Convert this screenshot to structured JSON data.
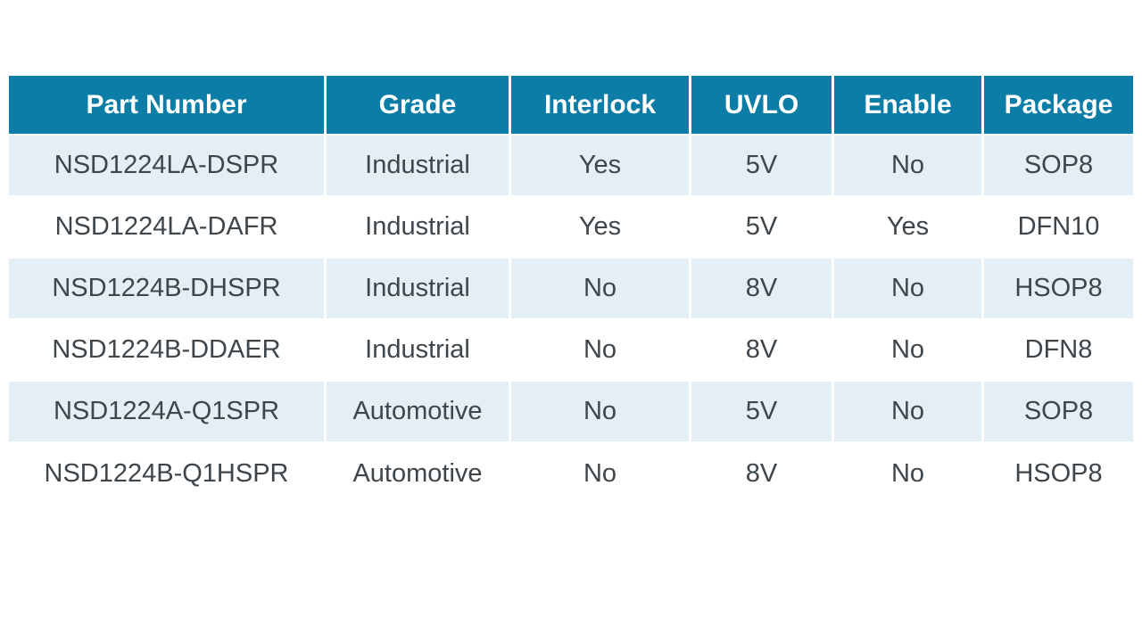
{
  "theme": {
    "header_bg": "#0b7da6",
    "header_text": "#ffffff",
    "row_alt_bg": "#e4eef5",
    "row_bg": "#ffffff",
    "body_text": "#3f464b"
  },
  "table": {
    "columns": [
      {
        "key": "part_number",
        "label": "Part Number"
      },
      {
        "key": "grade",
        "label": "Grade"
      },
      {
        "key": "interlock",
        "label": "Interlock"
      },
      {
        "key": "uvlo",
        "label": "UVLO"
      },
      {
        "key": "enable",
        "label": "Enable"
      },
      {
        "key": "package",
        "label": "Package"
      }
    ],
    "rows": [
      {
        "part_number": "NSD1224LA-DSPR",
        "grade": "Industrial",
        "interlock": "Yes",
        "uvlo": "5V",
        "enable": "No",
        "package": "SOP8"
      },
      {
        "part_number": "NSD1224LA-DAFR",
        "grade": "Industrial",
        "interlock": "Yes",
        "uvlo": "5V",
        "enable": "Yes",
        "package": "DFN10"
      },
      {
        "part_number": "NSD1224B-DHSPR",
        "grade": "Industrial",
        "interlock": "No",
        "uvlo": "8V",
        "enable": "No",
        "package": "HSOP8"
      },
      {
        "part_number": "NSD1224B-DDAER",
        "grade": "Industrial",
        "interlock": "No",
        "uvlo": "8V",
        "enable": "No",
        "package": "DFN8"
      },
      {
        "part_number": "NSD1224A-Q1SPR",
        "grade": "Automotive",
        "interlock": "No",
        "uvlo": "5V",
        "enable": "No",
        "package": "SOP8"
      },
      {
        "part_number": "NSD1224B-Q1HSPR",
        "grade": "Automotive",
        "interlock": "No",
        "uvlo": "8V",
        "enable": "No",
        "package": "HSOP8"
      }
    ]
  }
}
